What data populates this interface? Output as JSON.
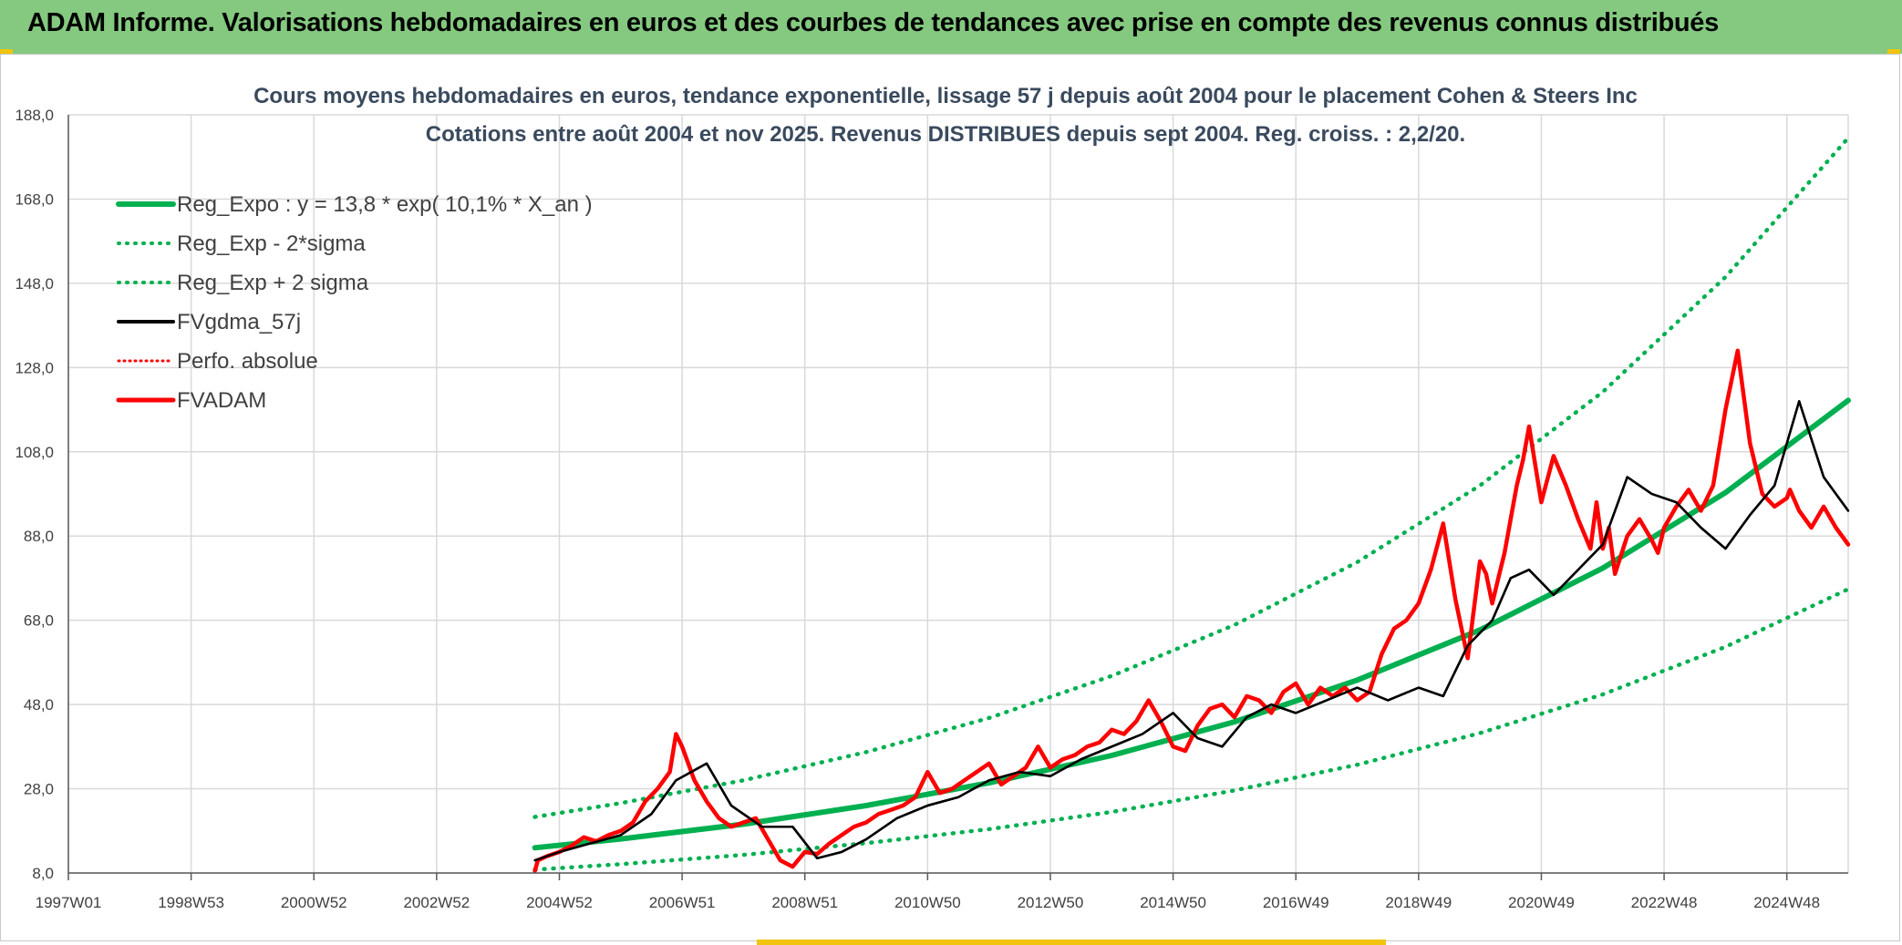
{
  "banner": {
    "title": "ADAM Informe. Valorisations hebdomadaires en euros et des courbes de tendances avec prise en compte des revenus connus distribués"
  },
  "colors": {
    "banner_bg": "#84c97f",
    "reg_expo": "#00b050",
    "fv_gdma": "#000000",
    "fvadam": "#ff0000",
    "grid": "#d9d9d9"
  },
  "chart_data": {
    "type": "line",
    "title": "Cours moyens hebdomadaires en euros, tendance exponentielle, lissage 57 j depuis août 2004 pour le placement Cohen & Steers Inc",
    "subtitle": "Cotations entre août 2004 et nov 2025. Revenus DISTRIBUES depuis sept 2004. Reg. croiss. : 2,2/20.",
    "ylim": [
      8,
      188
    ],
    "y_ticks": [
      "188,0",
      "168,0",
      "148,0",
      "128,0",
      "108,0",
      "88,0",
      "68,0",
      "48,0",
      "28,0",
      "8,0"
    ],
    "x_range": [
      1997.0,
      2026.0
    ],
    "x_ticks": [
      {
        "label": "1997W01",
        "x": 1997.0
      },
      {
        "label": "1998W53",
        "x": 1999.0
      },
      {
        "label": "2000W52",
        "x": 2001.0
      },
      {
        "label": "2002W52",
        "x": 2003.0
      },
      {
        "label": "2004W52",
        "x": 2005.0
      },
      {
        "label": "2006W51",
        "x": 2007.0
      },
      {
        "label": "2008W51",
        "x": 2009.0
      },
      {
        "label": "2010W50",
        "x": 2011.0
      },
      {
        "label": "2012W50",
        "x": 2013.0
      },
      {
        "label": "2014W50",
        "x": 2015.0
      },
      {
        "label": "2016W49",
        "x": 2017.0
      },
      {
        "label": "2018W49",
        "x": 2019.0
      },
      {
        "label": "2020W49",
        "x": 2021.0
      },
      {
        "label": "2022W48",
        "x": 2023.0
      },
      {
        "label": "2024W48",
        "x": 2025.0
      }
    ],
    "grid": true,
    "legend_position": "top-left",
    "legend": [
      {
        "label": "Reg_Expo : y = 13,8 * exp( 10,1% *  X_an )",
        "color": "#00b050",
        "style": "solid",
        "width": 6
      },
      {
        "label": "Reg_Exp - 2*sigma",
        "color": "#00b050",
        "style": "dotted",
        "width": 4
      },
      {
        "label": "Reg_Exp + 2 sigma",
        "color": "#00b050",
        "style": "dotted",
        "width": 4
      },
      {
        "label": "FVgdma_57j",
        "color": "#000000",
        "style": "solid",
        "width": 4
      },
      {
        "label": "Perfo. absolue",
        "color": "#ff0000",
        "style": "dotted",
        "width": 3
      },
      {
        "label": "FVADAM",
        "color": "#ff0000",
        "style": "solid",
        "width": 5
      }
    ],
    "series": [
      {
        "name": "Reg_Expo : y = 13,8 * exp( 10,1% *  X_an )",
        "color": "#00b050",
        "style": "solid",
        "x": [
          2004.6,
          2006.0,
          2008.0,
          2010.0,
          2012.0,
          2014.0,
          2016.0,
          2018.0,
          2020.0,
          2022.0,
          2024.0,
          2026.0
        ],
        "y": [
          14.0,
          16.1,
          19.6,
          24.0,
          29.4,
          35.9,
          43.9,
          53.8,
          65.7,
          80.4,
          98.3,
          120.2
        ]
      },
      {
        "name": "Reg_Exp - 2*sigma",
        "color": "#00b050",
        "style": "dotted",
        "x": [
          2004.6,
          2006.0,
          2008.0,
          2010.0,
          2012.0,
          2014.0,
          2016.0,
          2018.0,
          2020.0,
          2022.0,
          2024.0,
          2026.0
        ],
        "y": [
          8.8,
          10.1,
          12.3,
          15.1,
          18.4,
          22.5,
          27.6,
          33.7,
          41.2,
          50.4,
          61.7,
          75.4
        ]
      },
      {
        "name": "Reg_Exp + 2 sigma",
        "color": "#00b050",
        "style": "dotted",
        "x": [
          2004.6,
          2006.0,
          2008.0,
          2010.0,
          2012.0,
          2014.0,
          2016.0,
          2018.0,
          2020.0,
          2022.0,
          2024.0,
          2026.0
        ],
        "y": [
          21.3,
          24.6,
          30.0,
          36.7,
          44.8,
          54.8,
          66.9,
          81.8,
          100.0,
          122.2,
          149.5,
          182.5
        ]
      },
      {
        "name": "FVgdma_57j",
        "color": "#000000",
        "style": "solid",
        "x": [
          2004.6,
          2005.0,
          2005.5,
          2006.0,
          2006.5,
          2006.9,
          2007.4,
          2007.8,
          2008.3,
          2008.8,
          2009.2,
          2009.6,
          2010.0,
          2010.5,
          2011.0,
          2011.5,
          2012.0,
          2012.5,
          2013.0,
          2013.5,
          2014.0,
          2014.5,
          2015.0,
          2015.4,
          2015.8,
          2016.2,
          2016.6,
          2017.0,
          2017.5,
          2018.0,
          2018.5,
          2019.0,
          2019.4,
          2019.8,
          2020.2,
          2020.5,
          2020.8,
          2021.2,
          2021.6,
          2022.0,
          2022.4,
          2022.8,
          2023.2,
          2023.6,
          2024.0,
          2024.4,
          2024.8,
          2025.2,
          2025.6,
          2026.0
        ],
        "y": [
          11.0,
          13.0,
          15.0,
          17.0,
          22.0,
          30.0,
          34.0,
          24.0,
          19.0,
          19.0,
          11.5,
          13.0,
          16.0,
          21.0,
          24.0,
          26.0,
          30.0,
          32.0,
          31.0,
          35.0,
          38.0,
          41.0,
          46.0,
          40.0,
          38.0,
          45.0,
          48.0,
          46.0,
          49.0,
          52.0,
          49.0,
          52.0,
          50.0,
          62.0,
          68.0,
          78.0,
          80.0,
          74.0,
          80.0,
          86.0,
          102.0,
          98.0,
          96.0,
          90.0,
          85.0,
          93.0,
          100.0,
          120.0,
          102.0,
          94.0
        ]
      },
      {
        "name": "FVADAM",
        "color": "#ff0000",
        "style": "solid",
        "x": [
          2004.6,
          2004.65,
          2004.8,
          2005.0,
          2005.2,
          2005.4,
          2005.6,
          2005.8,
          2006.0,
          2006.2,
          2006.4,
          2006.6,
          2006.8,
          2006.9,
          2007.0,
          2007.2,
          2007.4,
          2007.6,
          2007.8,
          2008.0,
          2008.2,
          2008.4,
          2008.6,
          2008.8,
          2009.0,
          2009.2,
          2009.4,
          2009.6,
          2009.8,
          2010.0,
          2010.2,
          2010.4,
          2010.6,
          2010.8,
          2011.0,
          2011.2,
          2011.4,
          2011.6,
          2011.8,
          2012.0,
          2012.2,
          2012.4,
          2012.6,
          2012.8,
          2013.0,
          2013.2,
          2013.4,
          2013.6,
          2013.8,
          2014.0,
          2014.2,
          2014.4,
          2014.6,
          2014.8,
          2015.0,
          2015.2,
          2015.4,
          2015.6,
          2015.8,
          2016.0,
          2016.2,
          2016.4,
          2016.6,
          2016.8,
          2017.0,
          2017.2,
          2017.4,
          2017.6,
          2017.8,
          2018.0,
          2018.2,
          2018.4,
          2018.6,
          2018.8,
          2019.0,
          2019.2,
          2019.4,
          2019.6,
          2019.8,
          2020.0,
          2020.1,
          2020.2,
          2020.3,
          2020.4,
          2020.5,
          2020.6,
          2020.7,
          2020.8,
          2021.0,
          2021.2,
          2021.4,
          2021.6,
          2021.8,
          2021.9,
          2022.0,
          2022.1,
          2022.2,
          2022.4,
          2022.6,
          2022.8,
          2022.9,
          2023.0,
          2023.2,
          2023.4,
          2023.6,
          2023.8,
          2024.0,
          2024.2,
          2024.4,
          2024.6,
          2024.8,
          2025.0,
          2025.05,
          2025.2,
          2025.4,
          2025.6,
          2025.8,
          2026.0
        ],
        "y": [
          8.5,
          11.0,
          12.0,
          13.0,
          14.5,
          16.5,
          15.5,
          17.0,
          18.0,
          20.0,
          25.0,
          28.0,
          32.0,
          41.0,
          38.0,
          30.0,
          25.0,
          21.0,
          19.0,
          20.0,
          21.0,
          16.0,
          11.0,
          9.5,
          13.0,
          12.5,
          15.0,
          17.0,
          19.0,
          20.0,
          22.0,
          23.0,
          24.0,
          26.0,
          32.0,
          27.0,
          28.0,
          30.0,
          32.0,
          34.0,
          29.0,
          31.0,
          33.0,
          38.0,
          33.0,
          35.0,
          36.0,
          38.0,
          39.0,
          42.0,
          41.0,
          44.0,
          49.0,
          44.0,
          38.0,
          37.0,
          43.0,
          47.0,
          48.0,
          45.0,
          50.0,
          49.0,
          46.0,
          51.0,
          53.0,
          48.0,
          52.0,
          50.0,
          52.0,
          49.0,
          51.0,
          60.0,
          66.0,
          68.0,
          72.0,
          80.0,
          91.0,
          73.0,
          59.0,
          82.0,
          79.0,
          72.0,
          78.0,
          84.0,
          92.0,
          100.0,
          106.0,
          114.0,
          96.0,
          107.0,
          100.0,
          92.0,
          85.0,
          96.0,
          85.0,
          90.0,
          79.0,
          88.0,
          92.0,
          87.0,
          84.0,
          90.0,
          95.0,
          99.0,
          94.0,
          100.0,
          118.0,
          132.0,
          110.0,
          98.0,
          95.0,
          97.0,
          99.0,
          94.0,
          90.0,
          95.0,
          90.0,
          86.0
        ]
      }
    ]
  }
}
